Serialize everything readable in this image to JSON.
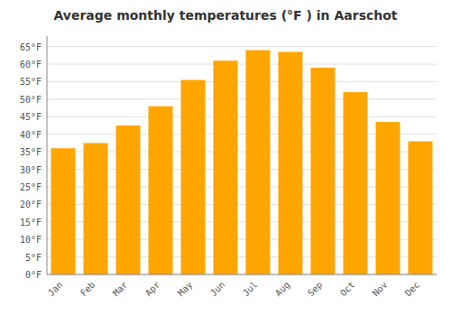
{
  "chart_data": {
    "type": "bar",
    "title": "Average monthly temperatures (°F ) in Aarschot",
    "categories": [
      "Jan",
      "Feb",
      "Mar",
      "Apr",
      "May",
      "Jun",
      "Jul",
      "Aug",
      "Sep",
      "Oct",
      "Nov",
      "Dec"
    ],
    "values": [
      36,
      37.5,
      42.5,
      48,
      55.5,
      61,
      64,
      63.5,
      59,
      52,
      43.5,
      38
    ],
    "color": "#FFA500",
    "ylim": [
      0,
      68
    ],
    "yticks": [
      {
        "value": 0,
        "label": "0°F"
      },
      {
        "value": 5,
        "label": "5°F"
      },
      {
        "value": 10,
        "label": "10°F"
      },
      {
        "value": 15,
        "label": "15°F"
      },
      {
        "value": 20,
        "label": "20°F"
      },
      {
        "value": 25,
        "label": "25°F"
      },
      {
        "value": 30,
        "label": "30°F"
      },
      {
        "value": 35,
        "label": "35°F"
      },
      {
        "value": 40,
        "label": "40°F"
      },
      {
        "value": 45,
        "label": "45°F"
      },
      {
        "value": 50,
        "label": "50°F"
      },
      {
        "value": 55,
        "label": "55°F"
      },
      {
        "value": 60,
        "label": "60°F"
      },
      {
        "value": 65,
        "label": "65°F"
      }
    ],
    "grid": true
  }
}
